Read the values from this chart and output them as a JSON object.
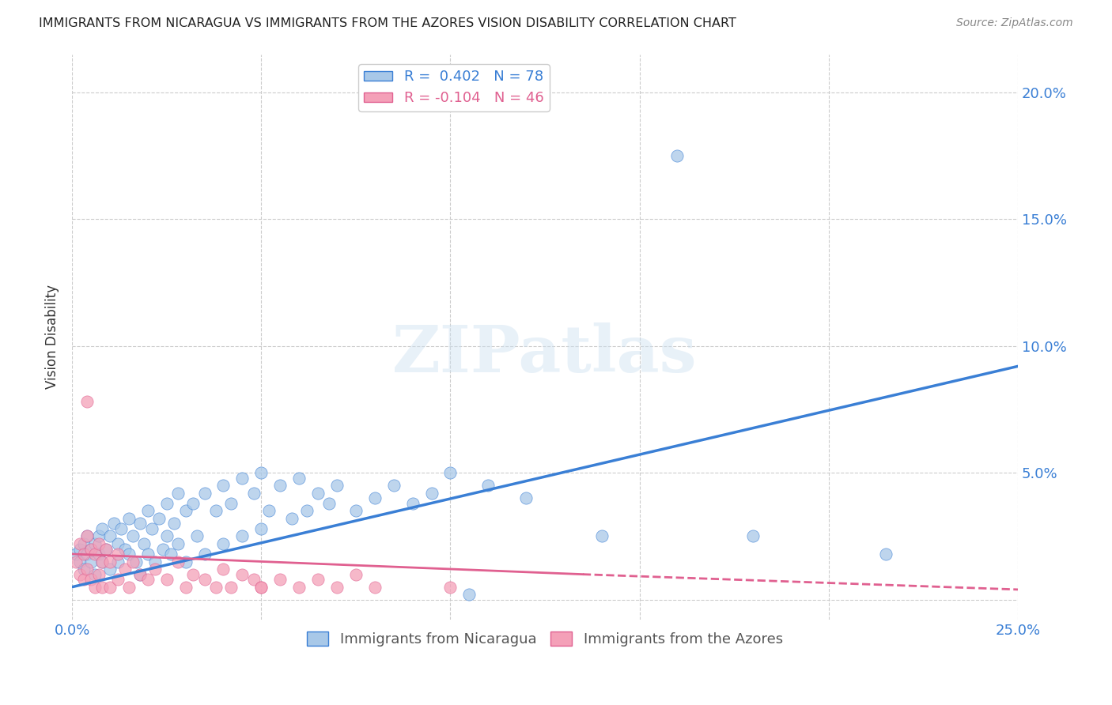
{
  "title": "IMMIGRANTS FROM NICARAGUA VS IMMIGRANTS FROM THE AZORES VISION DISABILITY CORRELATION CHART",
  "source": "Source: ZipAtlas.com",
  "ylabel": "Vision Disability",
  "xlim": [
    0.0,
    0.25
  ],
  "ylim": [
    -0.008,
    0.215
  ],
  "yticks": [
    0.0,
    0.05,
    0.1,
    0.15,
    0.2
  ],
  "ytick_labels_right": [
    "",
    "5.0%",
    "10.0%",
    "15.0%",
    "20.0%"
  ],
  "xticks": [
    0.0,
    0.05,
    0.1,
    0.15,
    0.2,
    0.25
  ],
  "xtick_labels": [
    "0.0%",
    "",
    "",
    "",
    "",
    "25.0%"
  ],
  "color_nicaragua": "#a8c8e8",
  "color_azores": "#f4a0b8",
  "line_color_nicaragua": "#3a7fd5",
  "line_color_azores": "#e06090",
  "legend_R1_black": "R = ",
  "legend_R1_blue": " 0.402",
  "legend_R1_n": "  N = ",
  "legend_R1_nval": "78",
  "legend_R2_black": "R = ",
  "legend_R2_blue": "-0.104",
  "legend_R2_n": "  N = ",
  "legend_R2_nval": "46",
  "watermark": "ZIPatlas",
  "nicaragua_scatter": [
    [
      0.001,
      0.018
    ],
    [
      0.002,
      0.02
    ],
    [
      0.002,
      0.015
    ],
    [
      0.003,
      0.022
    ],
    [
      0.003,
      0.012
    ],
    [
      0.004,
      0.018
    ],
    [
      0.004,
      0.025
    ],
    [
      0.005,
      0.02
    ],
    [
      0.005,
      0.015
    ],
    [
      0.006,
      0.022
    ],
    [
      0.006,
      0.01
    ],
    [
      0.007,
      0.025
    ],
    [
      0.007,
      0.018
    ],
    [
      0.008,
      0.028
    ],
    [
      0.008,
      0.015
    ],
    [
      0.009,
      0.02
    ],
    [
      0.01,
      0.025
    ],
    [
      0.01,
      0.012
    ],
    [
      0.011,
      0.03
    ],
    [
      0.012,
      0.022
    ],
    [
      0.012,
      0.015
    ],
    [
      0.013,
      0.028
    ],
    [
      0.014,
      0.02
    ],
    [
      0.015,
      0.032
    ],
    [
      0.015,
      0.018
    ],
    [
      0.016,
      0.025
    ],
    [
      0.017,
      0.015
    ],
    [
      0.018,
      0.03
    ],
    [
      0.018,
      0.01
    ],
    [
      0.019,
      0.022
    ],
    [
      0.02,
      0.035
    ],
    [
      0.02,
      0.018
    ],
    [
      0.021,
      0.028
    ],
    [
      0.022,
      0.015
    ],
    [
      0.023,
      0.032
    ],
    [
      0.024,
      0.02
    ],
    [
      0.025,
      0.038
    ],
    [
      0.025,
      0.025
    ],
    [
      0.026,
      0.018
    ],
    [
      0.027,
      0.03
    ],
    [
      0.028,
      0.042
    ],
    [
      0.028,
      0.022
    ],
    [
      0.03,
      0.035
    ],
    [
      0.03,
      0.015
    ],
    [
      0.032,
      0.038
    ],
    [
      0.033,
      0.025
    ],
    [
      0.035,
      0.042
    ],
    [
      0.035,
      0.018
    ],
    [
      0.038,
      0.035
    ],
    [
      0.04,
      0.045
    ],
    [
      0.04,
      0.022
    ],
    [
      0.042,
      0.038
    ],
    [
      0.045,
      0.048
    ],
    [
      0.045,
      0.025
    ],
    [
      0.048,
      0.042
    ],
    [
      0.05,
      0.05
    ],
    [
      0.05,
      0.028
    ],
    [
      0.052,
      0.035
    ],
    [
      0.055,
      0.045
    ],
    [
      0.058,
      0.032
    ],
    [
      0.06,
      0.048
    ],
    [
      0.062,
      0.035
    ],
    [
      0.065,
      0.042
    ],
    [
      0.068,
      0.038
    ],
    [
      0.07,
      0.045
    ],
    [
      0.075,
      0.035
    ],
    [
      0.08,
      0.04
    ],
    [
      0.085,
      0.045
    ],
    [
      0.09,
      0.038
    ],
    [
      0.095,
      0.042
    ],
    [
      0.1,
      0.05
    ],
    [
      0.105,
      0.002
    ],
    [
      0.11,
      0.045
    ],
    [
      0.12,
      0.04
    ],
    [
      0.14,
      0.025
    ],
    [
      0.16,
      0.175
    ],
    [
      0.18,
      0.025
    ],
    [
      0.215,
      0.018
    ]
  ],
  "azores_scatter": [
    [
      0.001,
      0.015
    ],
    [
      0.002,
      0.022
    ],
    [
      0.002,
      0.01
    ],
    [
      0.003,
      0.018
    ],
    [
      0.003,
      0.008
    ],
    [
      0.004,
      0.025
    ],
    [
      0.004,
      0.012
    ],
    [
      0.005,
      0.02
    ],
    [
      0.005,
      0.008
    ],
    [
      0.006,
      0.018
    ],
    [
      0.006,
      0.005
    ],
    [
      0.007,
      0.022
    ],
    [
      0.007,
      0.01
    ],
    [
      0.008,
      0.015
    ],
    [
      0.008,
      0.005
    ],
    [
      0.009,
      0.02
    ],
    [
      0.01,
      0.015
    ],
    [
      0.01,
      0.005
    ],
    [
      0.012,
      0.018
    ],
    [
      0.012,
      0.008
    ],
    [
      0.014,
      0.012
    ],
    [
      0.015,
      0.005
    ],
    [
      0.016,
      0.015
    ],
    [
      0.018,
      0.01
    ],
    [
      0.02,
      0.008
    ],
    [
      0.022,
      0.012
    ],
    [
      0.025,
      0.008
    ],
    [
      0.028,
      0.015
    ],
    [
      0.03,
      0.005
    ],
    [
      0.032,
      0.01
    ],
    [
      0.035,
      0.008
    ],
    [
      0.038,
      0.005
    ],
    [
      0.04,
      0.012
    ],
    [
      0.042,
      0.005
    ],
    [
      0.045,
      0.01
    ],
    [
      0.048,
      0.008
    ],
    [
      0.05,
      0.005
    ],
    [
      0.055,
      0.008
    ],
    [
      0.06,
      0.005
    ],
    [
      0.065,
      0.008
    ],
    [
      0.07,
      0.005
    ],
    [
      0.075,
      0.01
    ],
    [
      0.08,
      0.005
    ],
    [
      0.004,
      0.078
    ],
    [
      0.05,
      0.005
    ],
    [
      0.1,
      0.005
    ]
  ],
  "trendline_nicaragua": {
    "x_start": 0.0,
    "y_start": 0.005,
    "x_end": 0.25,
    "y_end": 0.092
  },
  "trendline_azores_solid": {
    "x_start": 0.0,
    "y_start": 0.018,
    "x_end": 0.135,
    "y_end": 0.01
  },
  "trendline_azores_dashed": {
    "x_start": 0.135,
    "y_start": 0.01,
    "x_end": 0.25,
    "y_end": 0.004
  }
}
